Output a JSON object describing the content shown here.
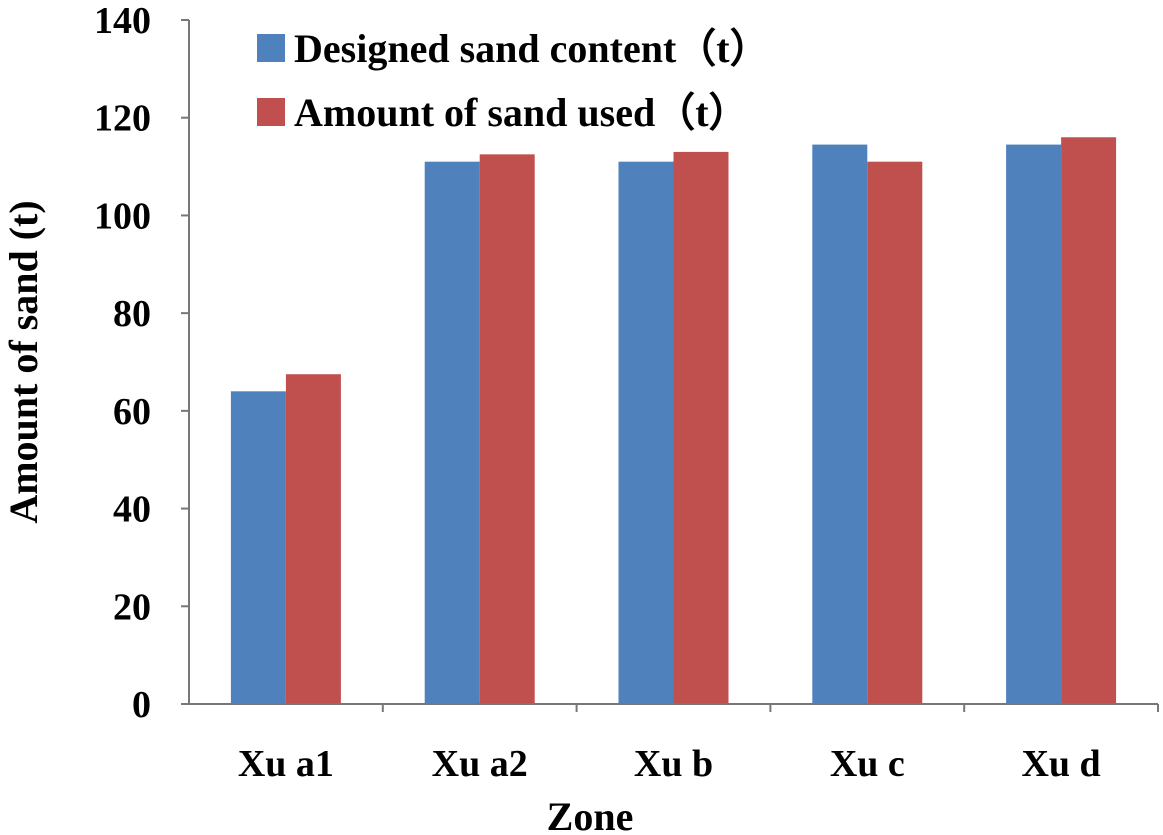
{
  "chart_data": {
    "type": "bar",
    "title": "",
    "xlabel": "Zone",
    "ylabel": "Amount of sand (t)",
    "categories": [
      "Xu a1",
      "Xu a2",
      "Xu b",
      "Xu c",
      "Xu d"
    ],
    "series": [
      {
        "name": "Designed sand content（t）",
        "values": [
          64,
          111,
          111,
          114.5,
          114.5
        ],
        "color": "#4F81BD"
      },
      {
        "name": "Amount of sand used（t）",
        "values": [
          67.5,
          112.5,
          113,
          111,
          116
        ],
        "color": "#C0504D"
      }
    ],
    "ylim": [
      0,
      140
    ],
    "yticks": [
      0,
      20,
      40,
      60,
      80,
      100,
      120,
      140
    ],
    "grid": false,
    "legend_position": "top-left inside plot"
  }
}
